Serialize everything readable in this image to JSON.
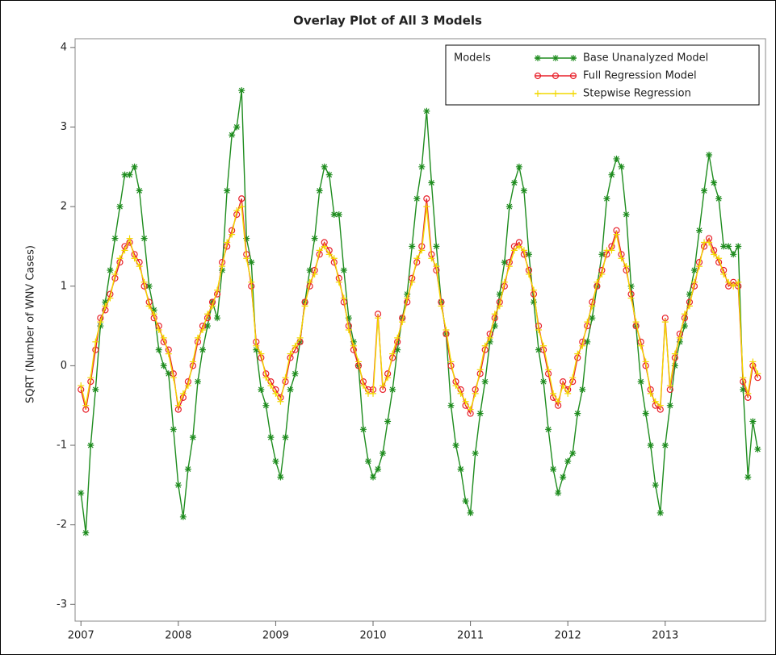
{
  "chart_data": {
    "type": "line",
    "title": "Overlay Plot of All 3 Models",
    "y_label": "SQRT (Number of WNV Cases)",
    "legend_title": "Models",
    "legend": "upper right",
    "xlim": [
      2006.94,
      2014.03
    ],
    "xticks": [
      2007,
      2008,
      2009,
      2010,
      2011,
      2012,
      2013
    ],
    "ylim": [
      -3.21,
      4.11
    ],
    "yticks": [
      -3,
      -2,
      -1,
      0,
      1,
      2,
      3,
      4
    ],
    "x": [
      2007,
      2007.05,
      2007.1,
      2007.15,
      2007.2,
      2007.25,
      2007.3,
      2007.35,
      2007.4,
      2007.45,
      2007.5,
      2007.55,
      2007.6,
      2007.65,
      2007.7,
      2007.75,
      2007.8,
      2007.85,
      2007.9,
      2007.95,
      2008,
      2008.05,
      2008.1,
      2008.15,
      2008.2,
      2008.25,
      2008.3,
      2008.35,
      2008.4,
      2008.45,
      2008.5,
      2008.55,
      2008.6,
      2008.65,
      2008.7,
      2008.75,
      2008.8,
      2008.85,
      2008.9,
      2008.95,
      2009,
      2009.05,
      2009.1,
      2009.15,
      2009.2,
      2009.25,
      2009.3,
      2009.35,
      2009.4,
      2009.45,
      2009.5,
      2009.55,
      2009.6,
      2009.65,
      2009.7,
      2009.75,
      2009.8,
      2009.85,
      2009.9,
      2009.95,
      2010,
      2010.05,
      2010.1,
      2010.15,
      2010.2,
      2010.25,
      2010.3,
      2010.35,
      2010.4,
      2010.45,
      2010.5,
      2010.55,
      2010.6,
      2010.65,
      2010.7,
      2010.75,
      2010.8,
      2010.85,
      2010.9,
      2010.95,
      2011,
      2011.05,
      2011.1,
      2011.15,
      2011.2,
      2011.25,
      2011.3,
      2011.35,
      2011.4,
      2011.45,
      2011.5,
      2011.55,
      2011.6,
      2011.65,
      2011.7,
      2011.75,
      2011.8,
      2011.85,
      2011.9,
      2011.95,
      2012,
      2012.05,
      2012.1,
      2012.15,
      2012.2,
      2012.25,
      2012.3,
      2012.35,
      2012.4,
      2012.45,
      2012.5,
      2012.55,
      2012.6,
      2012.65,
      2012.7,
      2012.75,
      2012.8,
      2012.85,
      2012.9,
      2012.95,
      2013,
      2013.05,
      2013.1,
      2013.15,
      2013.2,
      2013.25,
      2013.3,
      2013.35,
      2013.4,
      2013.45,
      2013.5,
      2013.55,
      2013.6,
      2013.65,
      2013.7,
      2013.75,
      2013.8,
      2013.85,
      2013.9,
      2013.95
    ],
    "series": [
      {
        "name": "Base Unanalyzed Model",
        "color": "#1e8c1e",
        "marker": "star",
        "values": [
          -1.6,
          -2.1,
          -1.0,
          -0.3,
          0.5,
          0.8,
          1.2,
          1.6,
          2.0,
          2.4,
          2.4,
          2.5,
          2.2,
          1.6,
          1.0,
          0.7,
          0.2,
          0.0,
          -0.1,
          -0.8,
          -1.5,
          -1.9,
          -1.3,
          -0.9,
          -0.2,
          0.2,
          0.5,
          0.8,
          0.6,
          1.2,
          2.2,
          2.9,
          3.0,
          3.46,
          1.6,
          1.3,
          0.2,
          -0.3,
          -0.5,
          -0.9,
          -1.2,
          -1.4,
          -0.9,
          -0.3,
          -0.1,
          0.3,
          0.8,
          1.2,
          1.6,
          2.2,
          2.5,
          2.4,
          1.9,
          1.9,
          1.2,
          0.6,
          0.3,
          0.0,
          -0.8,
          -1.2,
          -1.4,
          -1.3,
          -1.1,
          -0.7,
          -0.3,
          0.2,
          0.6,
          0.9,
          1.5,
          2.1,
          2.5,
          3.2,
          2.3,
          1.5,
          0.8,
          0.4,
          -0.5,
          -1.0,
          -1.3,
          -1.7,
          -1.85,
          -1.1,
          -0.6,
          -0.2,
          0.3,
          0.5,
          0.9,
          1.3,
          2.0,
          2.3,
          2.5,
          2.2,
          1.4,
          0.8,
          0.2,
          -0.2,
          -0.8,
          -1.3,
          -1.6,
          -1.4,
          -1.2,
          -1.1,
          -0.6,
          -0.3,
          0.3,
          0.6,
          1.0,
          1.4,
          2.1,
          2.4,
          2.6,
          2.5,
          1.9,
          1.0,
          0.5,
          -0.2,
          -0.6,
          -1.0,
          -1.5,
          -1.85,
          -1.0,
          -0.5,
          0.0,
          0.3,
          0.5,
          0.9,
          1.2,
          1.7,
          2.2,
          2.65,
          2.3,
          2.1,
          1.5,
          1.5,
          1.4,
          1.5,
          -0.3,
          -1.4,
          -0.7,
          -1.05
        ]
      },
      {
        "name": "Full Regression Model",
        "color": "#e8202a",
        "marker": "circle",
        "values": [
          -0.3,
          -0.55,
          -0.2,
          0.2,
          0.6,
          0.7,
          0.9,
          1.1,
          1.3,
          1.5,
          1.55,
          1.4,
          1.3,
          1.0,
          0.8,
          0.6,
          0.5,
          0.3,
          0.2,
          -0.1,
          -0.55,
          -0.4,
          -0.2,
          0.0,
          0.3,
          0.5,
          0.6,
          0.8,
          0.9,
          1.3,
          1.5,
          1.7,
          1.9,
          2.1,
          1.4,
          1.0,
          0.3,
          0.1,
          -0.1,
          -0.2,
          -0.3,
          -0.4,
          -0.2,
          0.1,
          0.2,
          0.3,
          0.8,
          1.0,
          1.2,
          1.4,
          1.55,
          1.45,
          1.3,
          1.1,
          0.8,
          0.5,
          0.2,
          0.0,
          -0.2,
          -0.3,
          -0.3,
          0.65,
          -0.3,
          -0.1,
          0.1,
          0.3,
          0.6,
          0.8,
          1.1,
          1.3,
          1.5,
          2.1,
          1.4,
          1.2,
          0.8,
          0.4,
          0.0,
          -0.2,
          -0.3,
          -0.5,
          -0.6,
          -0.3,
          -0.1,
          0.2,
          0.4,
          0.6,
          0.8,
          1.0,
          1.3,
          1.5,
          1.55,
          1.4,
          1.2,
          0.9,
          0.5,
          0.2,
          -0.1,
          -0.4,
          -0.5,
          -0.2,
          -0.3,
          -0.2,
          0.1,
          0.3,
          0.5,
          0.8,
          1.0,
          1.2,
          1.4,
          1.5,
          1.7,
          1.4,
          1.2,
          0.9,
          0.5,
          0.3,
          0.0,
          -0.3,
          -0.5,
          -0.55,
          0.6,
          -0.3,
          0.1,
          0.4,
          0.6,
          0.8,
          1.0,
          1.3,
          1.5,
          1.6,
          1.45,
          1.3,
          1.2,
          1.0,
          1.05,
          1.0,
          -0.2,
          -0.4,
          0.0,
          -0.15
        ]
      },
      {
        "name": "Stepwise Regression",
        "color": "#f2d800",
        "marker": "plus",
        "values": [
          -0.25,
          -0.5,
          -0.15,
          0.3,
          0.55,
          0.75,
          0.85,
          1.15,
          1.35,
          1.45,
          1.6,
          1.35,
          1.25,
          1.05,
          0.75,
          0.65,
          0.45,
          0.35,
          0.15,
          -0.15,
          -0.5,
          -0.35,
          -0.25,
          0.05,
          0.35,
          0.45,
          0.65,
          0.75,
          0.95,
          1.25,
          1.55,
          1.65,
          1.95,
          2.0,
          1.35,
          1.05,
          0.25,
          0.15,
          -0.15,
          -0.25,
          -0.35,
          -0.45,
          -0.15,
          0.15,
          0.25,
          0.35,
          0.75,
          1.05,
          1.15,
          1.45,
          1.5,
          1.4,
          1.35,
          1.05,
          0.85,
          0.45,
          0.25,
          0.05,
          -0.25,
          -0.35,
          -0.35,
          0.6,
          -0.25,
          -0.15,
          0.15,
          0.35,
          0.55,
          0.85,
          1.05,
          1.35,
          1.45,
          2.0,
          1.35,
          1.25,
          0.75,
          0.45,
          0.05,
          -0.25,
          -0.35,
          -0.45,
          -0.55,
          -0.35,
          -0.05,
          0.25,
          0.35,
          0.65,
          0.75,
          1.05,
          1.25,
          1.45,
          1.5,
          1.45,
          1.15,
          0.95,
          0.45,
          0.25,
          -0.05,
          -0.35,
          -0.45,
          -0.25,
          -0.35,
          -0.15,
          0.15,
          0.25,
          0.55,
          0.75,
          1.05,
          1.15,
          1.45,
          1.45,
          1.65,
          1.35,
          1.25,
          0.85,
          0.55,
          0.25,
          0.05,
          -0.35,
          -0.45,
          -0.5,
          0.55,
          -0.25,
          0.15,
          0.35,
          0.65,
          0.75,
          1.05,
          1.25,
          1.55,
          1.55,
          1.4,
          1.35,
          1.15,
          1.05,
          1.0,
          1.05,
          -0.15,
          -0.35,
          0.05,
          -0.1
        ]
      }
    ]
  }
}
